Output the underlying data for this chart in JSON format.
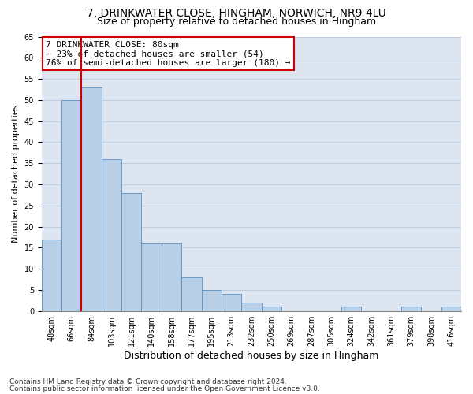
{
  "title1": "7, DRINKWATER CLOSE, HINGHAM, NORWICH, NR9 4LU",
  "title2": "Size of property relative to detached houses in Hingham",
  "xlabel": "Distribution of detached houses by size in Hingham",
  "ylabel": "Number of detached properties",
  "categories": [
    "48sqm",
    "66sqm",
    "84sqm",
    "103sqm",
    "121sqm",
    "140sqm",
    "158sqm",
    "177sqm",
    "195sqm",
    "213sqm",
    "232sqm",
    "250sqm",
    "269sqm",
    "287sqm",
    "305sqm",
    "324sqm",
    "342sqm",
    "361sqm",
    "379sqm",
    "398sqm",
    "416sqm"
  ],
  "values": [
    17,
    50,
    53,
    36,
    28,
    16,
    16,
    8,
    5,
    4,
    2,
    1,
    0,
    0,
    0,
    1,
    0,
    0,
    1,
    0,
    1
  ],
  "bar_color": "#b8cfe8",
  "bar_edge_color": "#6090c0",
  "red_line_x": 1.5,
  "annotation_line1": "7 DRINKWATER CLOSE: 80sqm",
  "annotation_line2": "← 23% of detached houses are smaller (54)",
  "annotation_line3": "76% of semi-detached houses are larger (180) →",
  "annotation_box_color": "#ffffff",
  "annotation_border_color": "#cc0000",
  "red_line_color": "#cc0000",
  "ylim": [
    0,
    65
  ],
  "yticks": [
    0,
    5,
    10,
    15,
    20,
    25,
    30,
    35,
    40,
    45,
    50,
    55,
    60,
    65
  ],
  "grid_color": "#c0cce0",
  "background_color": "#dde6f0",
  "footer1": "Contains HM Land Registry data © Crown copyright and database right 2024.",
  "footer2": "Contains public sector information licensed under the Open Government Licence v3.0.",
  "title1_fontsize": 10,
  "title2_fontsize": 9,
  "xlabel_fontsize": 9,
  "ylabel_fontsize": 8,
  "tick_fontsize": 7,
  "annotation_fontsize": 8,
  "footer_fontsize": 6.5
}
